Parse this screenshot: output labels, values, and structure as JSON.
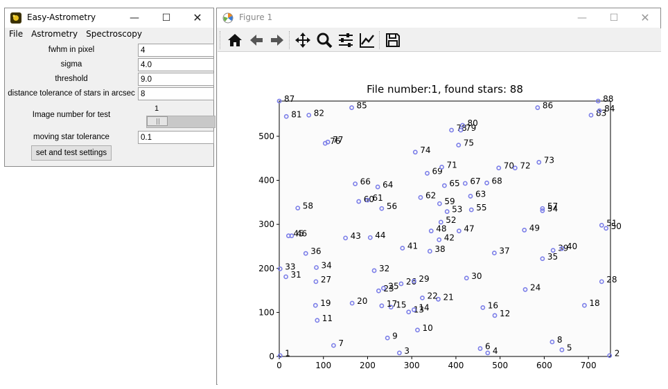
{
  "easy_window": {
    "title": "Easy-Astrometry",
    "menu": [
      "File",
      "Astrometry",
      "Spectroscopy"
    ],
    "fields": [
      {
        "label": "fwhm in pixel",
        "value": "4"
      },
      {
        "label": "sigma",
        "value": "4.0"
      },
      {
        "label": "threshold",
        "value": "9.0"
      },
      {
        "label": "distance tolerance of stars in arcsec",
        "value": "8"
      }
    ],
    "slider": {
      "label": "Image number for test",
      "value": "1"
    },
    "moving": {
      "label": "moving star tolerance",
      "value": "0.1"
    },
    "button_label": "set and test settings"
  },
  "figure_window": {
    "title": "Figure 1",
    "toolbar": [
      "home-icon",
      "back-icon",
      "forward-icon",
      "pan-icon",
      "zoom-icon",
      "configure-subplots-icon",
      "edit-axis-icon",
      "save-icon"
    ]
  },
  "chart_data": {
    "type": "scatter",
    "title": "File number:1, found stars: 88",
    "xlim": [
      0,
      750
    ],
    "ylim": [
      0,
      580
    ],
    "xticks": [
      0,
      100,
      200,
      300,
      400,
      500,
      600,
      700
    ],
    "yticks": [
      0,
      100,
      200,
      300,
      400,
      500
    ],
    "marker_color": "#7b7ee8",
    "points": [
      {
        "label": "1",
        "x": 2,
        "y": 2
      },
      {
        "label": "2",
        "x": 748,
        "y": 2
      },
      {
        "label": "3",
        "x": 272,
        "y": 8
      },
      {
        "label": "4",
        "x": 472,
        "y": 8
      },
      {
        "label": "5",
        "x": 640,
        "y": 15
      },
      {
        "label": "6",
        "x": 455,
        "y": 18
      },
      {
        "label": "7",
        "x": 123,
        "y": 25
      },
      {
        "label": "8",
        "x": 618,
        "y": 33
      },
      {
        "label": "9",
        "x": 245,
        "y": 42
      },
      {
        "label": "10",
        "x": 313,
        "y": 60
      },
      {
        "label": "11",
        "x": 86,
        "y": 82
      },
      {
        "label": "12",
        "x": 488,
        "y": 93
      },
      {
        "label": "13",
        "x": 293,
        "y": 101
      },
      {
        "label": "14",
        "x": 305,
        "y": 106
      },
      {
        "label": "15",
        "x": 253,
        "y": 112
      },
      {
        "label": "16",
        "x": 461,
        "y": 111
      },
      {
        "label": "17",
        "x": 232,
        "y": 115
      },
      {
        "label": "18",
        "x": 691,
        "y": 116
      },
      {
        "label": "19",
        "x": 82,
        "y": 116
      },
      {
        "label": "20",
        "x": 165,
        "y": 121
      },
      {
        "label": "21",
        "x": 360,
        "y": 130
      },
      {
        "label": "22",
        "x": 324,
        "y": 133
      },
      {
        "label": "23",
        "x": 225,
        "y": 149
      },
      {
        "label": "24",
        "x": 557,
        "y": 152
      },
      {
        "label": "25",
        "x": 236,
        "y": 155
      },
      {
        "label": "26",
        "x": 276,
        "y": 165
      },
      {
        "label": "27",
        "x": 83,
        "y": 170
      },
      {
        "label": "28",
        "x": 730,
        "y": 170
      },
      {
        "label": "29",
        "x": 305,
        "y": 171
      },
      {
        "label": "30",
        "x": 424,
        "y": 178
      },
      {
        "label": "31",
        "x": 15,
        "y": 181
      },
      {
        "label": "32",
        "x": 215,
        "y": 195
      },
      {
        "label": "33",
        "x": 2,
        "y": 199
      },
      {
        "label": "34",
        "x": 84,
        "y": 202
      },
      {
        "label": "35",
        "x": 596,
        "y": 222
      },
      {
        "label": "36",
        "x": 60,
        "y": 234
      },
      {
        "label": "37",
        "x": 487,
        "y": 235
      },
      {
        "label": "38",
        "x": 341,
        "y": 239
      },
      {
        "label": "39",
        "x": 620,
        "y": 241
      },
      {
        "label": "40",
        "x": 640,
        "y": 245
      },
      {
        "label": "41",
        "x": 279,
        "y": 246
      },
      {
        "label": "42",
        "x": 362,
        "y": 265
      },
      {
        "label": "43",
        "x": 150,
        "y": 269
      },
      {
        "label": "44",
        "x": 206,
        "y": 270
      },
      {
        "label": "45",
        "x": 21,
        "y": 274
      },
      {
        "label": "46",
        "x": 28,
        "y": 274
      },
      {
        "label": "47",
        "x": 407,
        "y": 285
      },
      {
        "label": "48",
        "x": 344,
        "y": 285
      },
      {
        "label": "49",
        "x": 555,
        "y": 287
      },
      {
        "label": "50",
        "x": 740,
        "y": 291
      },
      {
        "label": "51",
        "x": 730,
        "y": 298
      },
      {
        "label": "52",
        "x": 366,
        "y": 305
      },
      {
        "label": "53",
        "x": 380,
        "y": 329
      },
      {
        "label": "54",
        "x": 596,
        "y": 331
      },
      {
        "label": "55",
        "x": 435,
        "y": 333
      },
      {
        "label": "56",
        "x": 232,
        "y": 336
      },
      {
        "label": "57",
        "x": 596,
        "y": 336
      },
      {
        "label": "58",
        "x": 42,
        "y": 337
      },
      {
        "label": "59",
        "x": 363,
        "y": 347
      },
      {
        "label": "60",
        "x": 180,
        "y": 352
      },
      {
        "label": "61",
        "x": 200,
        "y": 355
      },
      {
        "label": "62",
        "x": 320,
        "y": 361
      },
      {
        "label": "63",
        "x": 433,
        "y": 364
      },
      {
        "label": "64",
        "x": 223,
        "y": 385
      },
      {
        "label": "65",
        "x": 374,
        "y": 388
      },
      {
        "label": "66",
        "x": 172,
        "y": 392
      },
      {
        "label": "67",
        "x": 421,
        "y": 393
      },
      {
        "label": "68",
        "x": 470,
        "y": 394
      },
      {
        "label": "69",
        "x": 335,
        "y": 416
      },
      {
        "label": "70",
        "x": 497,
        "y": 428
      },
      {
        "label": "71",
        "x": 368,
        "y": 430
      },
      {
        "label": "72",
        "x": 534,
        "y": 428
      },
      {
        "label": "73",
        "x": 588,
        "y": 441
      },
      {
        "label": "74",
        "x": 308,
        "y": 464
      },
      {
        "label": "75",
        "x": 406,
        "y": 480
      },
      {
        "label": "76",
        "x": 104,
        "y": 484
      },
      {
        "label": "77",
        "x": 110,
        "y": 487
      },
      {
        "label": "78",
        "x": 390,
        "y": 514
      },
      {
        "label": "79",
        "x": 411,
        "y": 514
      },
      {
        "label": "80",
        "x": 415,
        "y": 525
      },
      {
        "label": "81",
        "x": 16,
        "y": 545
      },
      {
        "label": "82",
        "x": 67,
        "y": 548
      },
      {
        "label": "83",
        "x": 706,
        "y": 548
      },
      {
        "label": "84",
        "x": 725,
        "y": 558
      },
      {
        "label": "85",
        "x": 164,
        "y": 565
      },
      {
        "label": "86",
        "x": 585,
        "y": 565
      },
      {
        "label": "87",
        "x": 0,
        "y": 580
      },
      {
        "label": "88",
        "x": 722,
        "y": 580
      }
    ]
  }
}
